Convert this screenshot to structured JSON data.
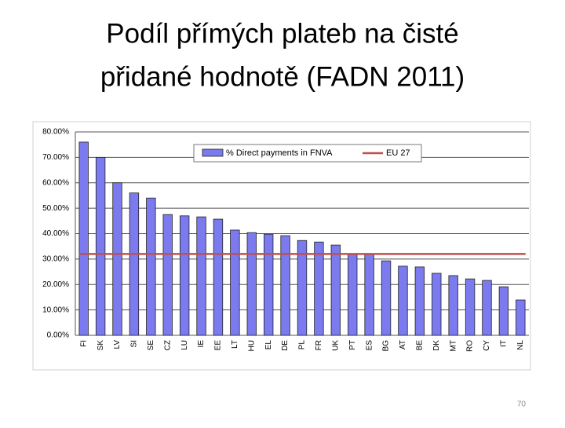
{
  "slide_title": [
    "Podíl přímých plateb na čisté",
    "přidané hodnotě (FADN 2011)"
  ],
  "page_number": "70",
  "chart_data": {
    "type": "bar",
    "categories": [
      "FI",
      "SK",
      "LV",
      "SI",
      "SE",
      "CZ",
      "LU",
      "IE",
      "EE",
      "LT",
      "HU",
      "EL",
      "DE",
      "PL",
      "FR",
      "UK",
      "PT",
      "ES",
      "BG",
      "AT",
      "BE",
      "DK",
      "MT",
      "RO",
      "CY",
      "IT",
      "NL"
    ],
    "series": [
      {
        "name": "% Direct payments in FNVA",
        "color": "#7b7bef",
        "type": "bar",
        "values": [
          76,
          70,
          60,
          56,
          54,
          47.5,
          47,
          46.6,
          45.7,
          41.4,
          40.4,
          39.8,
          39.2,
          37.3,
          36.7,
          35.5,
          32,
          31.8,
          29.3,
          27.2,
          26.9,
          24.4,
          23.5,
          22.2,
          21.6,
          19.1,
          13.9
        ]
      },
      {
        "name": "EU 27",
        "color": "#c0504d",
        "type": "line",
        "values": [
          32,
          32,
          32,
          32,
          32,
          32,
          32,
          32,
          32,
          32,
          32,
          32,
          32,
          32,
          32,
          32,
          32,
          32,
          32,
          32,
          32,
          32,
          32,
          32,
          32,
          32,
          32
        ]
      }
    ],
    "ylim": [
      0,
      80
    ],
    "yticks": [
      {
        "value": 0,
        "label": "0.00%"
      },
      {
        "value": 10,
        "label": "10.00%"
      },
      {
        "value": 20,
        "label": "20.00%"
      },
      {
        "value": 30,
        "label": "30.00%"
      },
      {
        "value": 40,
        "label": "40.00%"
      },
      {
        "value": 50,
        "label": "50.00%"
      },
      {
        "value": 60,
        "label": "60.00%"
      },
      {
        "value": 70,
        "label": "70.00%"
      },
      {
        "value": 80,
        "label": "80.00%"
      }
    ],
    "grid": true,
    "legend": "top"
  }
}
